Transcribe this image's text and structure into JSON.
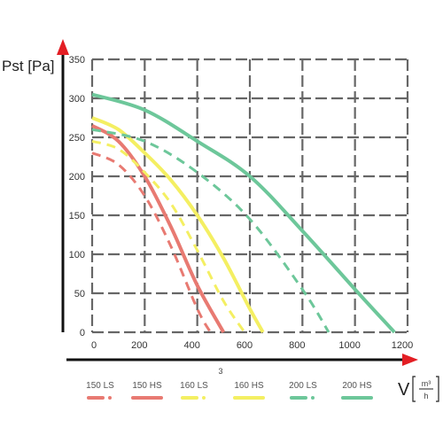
{
  "chart_data": {
    "type": "line",
    "ylabel": "Pst [Pa]",
    "xlabel_prefix": "V",
    "xlabel_unit_num": "m³",
    "xlabel_unit_den": "h",
    "stray_label": "3",
    "xlim": [
      0,
      1200
    ],
    "ylim": [
      0,
      350
    ],
    "x_ticks": [
      0,
      200,
      400,
      600,
      800,
      1000,
      1200
    ],
    "y_ticks": [
      0,
      50,
      100,
      150,
      200,
      250,
      300,
      350
    ],
    "grid": true,
    "legend_position": "bottom",
    "series": [
      {
        "name": "150 LS",
        "color": "#e87a72",
        "dashed": true,
        "x": [
          0,
          100,
          200,
          300,
          400,
          450
        ],
        "y": [
          230,
          215,
          175,
          110,
          30,
          0
        ]
      },
      {
        "name": "150 HS",
        "color": "#e87a72",
        "dashed": false,
        "x": [
          0,
          100,
          200,
          300,
          400,
          500
        ],
        "y": [
          265,
          245,
          200,
          135,
          60,
          0
        ]
      },
      {
        "name": "160 LS",
        "color": "#f4ef62",
        "dashed": true,
        "x": [
          0,
          100,
          200,
          300,
          400,
          500,
          580
        ],
        "y": [
          245,
          235,
          205,
          165,
          105,
          40,
          0
        ]
      },
      {
        "name": "160 HS",
        "color": "#f4ef62",
        "dashed": false,
        "x": [
          0,
          100,
          200,
          300,
          400,
          500,
          600,
          650
        ],
        "y": [
          275,
          260,
          230,
          195,
          150,
          95,
          30,
          0
        ]
      },
      {
        "name": "200 LS",
        "color": "#6dc79a",
        "dashed": true,
        "x": [
          0,
          200,
          400,
          600,
          800,
          900
        ],
        "y": [
          260,
          245,
          205,
          145,
          55,
          0
        ]
      },
      {
        "name": "200 HS",
        "color": "#6dc79a",
        "dashed": false,
        "x": [
          0,
          200,
          400,
          600,
          800,
          1000,
          1150
        ],
        "y": [
          305,
          285,
          245,
          200,
          130,
          55,
          0
        ]
      }
    ]
  }
}
